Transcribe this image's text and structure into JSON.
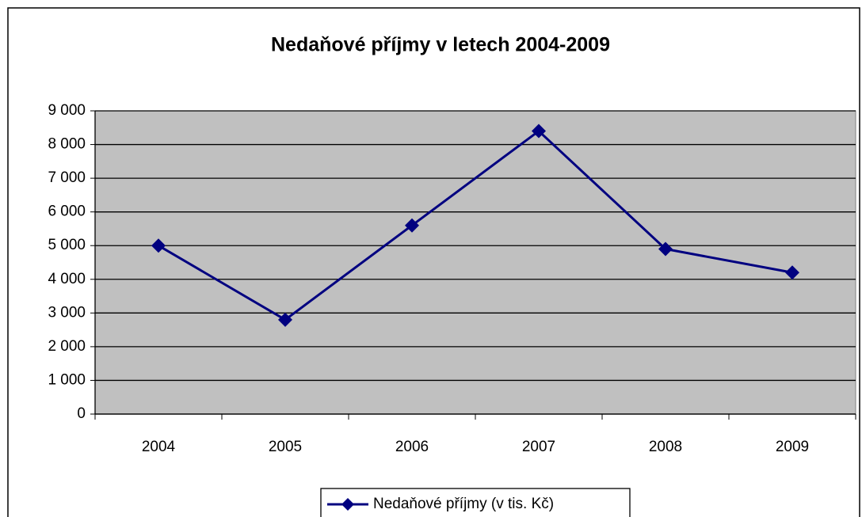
{
  "chart_data": {
    "type": "line",
    "title": "Nedaňové příjmy v letech 2004-2009",
    "categories": [
      "2004",
      "2005",
      "2006",
      "2007",
      "2008",
      "2009"
    ],
    "series": [
      {
        "name": "Nedaňové příjmy (v tis. Kč)",
        "color": "#000080",
        "values": [
          5000,
          2800,
          5600,
          8400,
          4900,
          4200
        ]
      }
    ],
    "ylim": [
      0,
      9000
    ],
    "yticks": [
      {
        "value": 0,
        "label": "0"
      },
      {
        "value": 1000,
        "label": "1 000"
      },
      {
        "value": 2000,
        "label": "2 000"
      },
      {
        "value": 3000,
        "label": "3 000"
      },
      {
        "value": 4000,
        "label": "4 000"
      },
      {
        "value": 5000,
        "label": "5 000"
      },
      {
        "value": 6000,
        "label": "6 000"
      },
      {
        "value": 7000,
        "label": "7 000"
      },
      {
        "value": 8000,
        "label": "8 000"
      },
      {
        "value": 9000,
        "label": "9 000"
      }
    ],
    "grid": true,
    "plot_background": "#c0c0c0",
    "legend": "bottom"
  }
}
